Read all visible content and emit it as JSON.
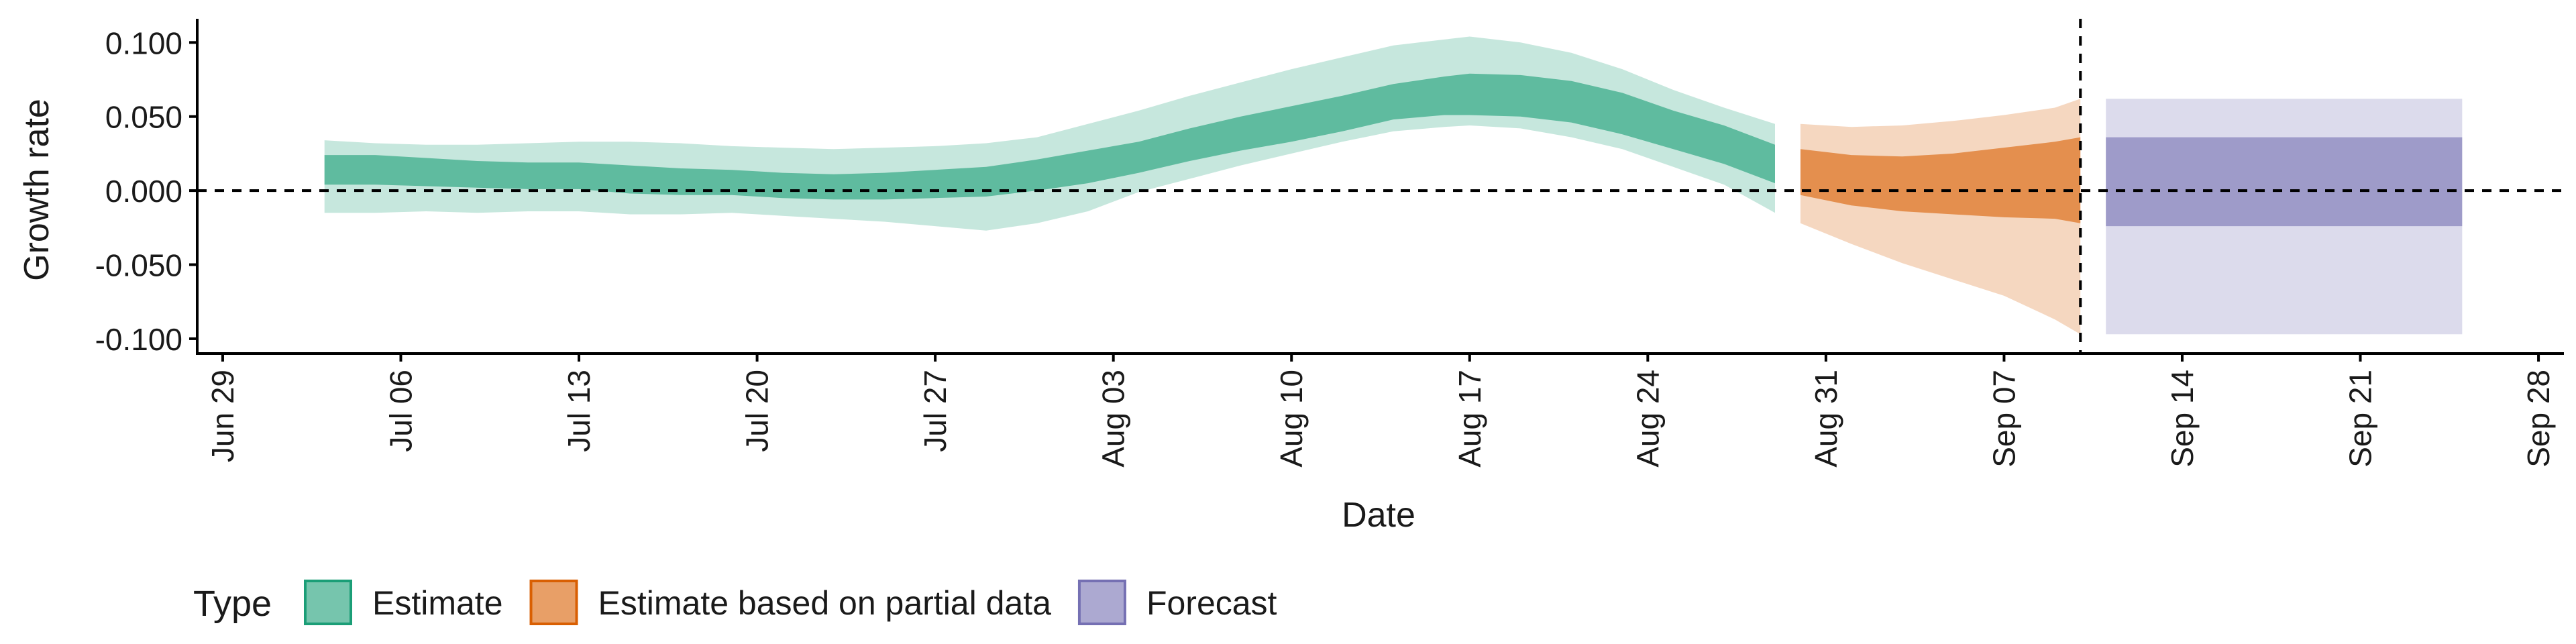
{
  "chart_data": {
    "type": "area",
    "xlabel": "Date",
    "ylabel": "Growth rate",
    "xlim": [
      "2020-06-28",
      "2020-09-29"
    ],
    "ylim": [
      -0.11,
      0.116
    ],
    "x_ticks": [
      {
        "date": "2020-06-29",
        "label": "Jun 29"
      },
      {
        "date": "2020-07-06",
        "label": "Jul 06"
      },
      {
        "date": "2020-07-13",
        "label": "Jul 13"
      },
      {
        "date": "2020-07-20",
        "label": "Jul 20"
      },
      {
        "date": "2020-07-27",
        "label": "Jul 27"
      },
      {
        "date": "2020-08-03",
        "label": "Aug 03"
      },
      {
        "date": "2020-08-10",
        "label": "Aug 10"
      },
      {
        "date": "2020-08-17",
        "label": "Aug 17"
      },
      {
        "date": "2020-08-24",
        "label": "Aug 24"
      },
      {
        "date": "2020-08-31",
        "label": "Aug 31"
      },
      {
        "date": "2020-09-07",
        "label": "Sep 07"
      },
      {
        "date": "2020-09-14",
        "label": "Sep 14"
      },
      {
        "date": "2020-09-21",
        "label": "Sep 21"
      },
      {
        "date": "2020-09-28",
        "label": "Sep 28"
      }
    ],
    "y_ticks": [
      {
        "value": 0.1,
        "label": "0.100"
      },
      {
        "value": 0.05,
        "label": "0.050"
      },
      {
        "value": 0.0,
        "label": "0.000"
      },
      {
        "value": -0.05,
        "label": "-0.050"
      },
      {
        "value": -0.1,
        "label": "-0.100"
      }
    ],
    "hline_y": 0.0,
    "vline_date": "2020-09-10",
    "grid": false,
    "legend": {
      "title": "Type",
      "position": "bottom-left"
    },
    "series": [
      {
        "name": "Estimate",
        "color": "#1b9e77",
        "dates": [
          "2020-07-03",
          "2020-07-05",
          "2020-07-07",
          "2020-07-09",
          "2020-07-11",
          "2020-07-13",
          "2020-07-15",
          "2020-07-17",
          "2020-07-19",
          "2020-07-21",
          "2020-07-23",
          "2020-07-25",
          "2020-07-27",
          "2020-07-29",
          "2020-07-31",
          "2020-08-02",
          "2020-08-04",
          "2020-08-06",
          "2020-08-08",
          "2020-08-10",
          "2020-08-12",
          "2020-08-14",
          "2020-08-16",
          "2020-08-17",
          "2020-08-19",
          "2020-08-21",
          "2020-08-23",
          "2020-08-25",
          "2020-08-27",
          "2020-08-29"
        ],
        "lower_90": [
          -0.015,
          -0.015,
          -0.014,
          -0.015,
          -0.014,
          -0.014,
          -0.016,
          -0.016,
          -0.015,
          -0.017,
          -0.019,
          -0.021,
          -0.024,
          -0.027,
          -0.022,
          -0.014,
          -0.001,
          0.008,
          0.017,
          0.025,
          0.033,
          0.04,
          0.043,
          0.044,
          0.042,
          0.036,
          0.028,
          0.016,
          0.004,
          -0.015
        ],
        "lower_50": [
          0.004,
          0.004,
          0.003,
          0.002,
          0.001,
          0.001,
          -0.002,
          -0.003,
          -0.003,
          -0.005,
          -0.006,
          -0.006,
          -0.005,
          -0.004,
          0.0,
          0.005,
          0.012,
          0.02,
          0.027,
          0.033,
          0.04,
          0.048,
          0.051,
          0.051,
          0.05,
          0.046,
          0.038,
          0.028,
          0.018,
          0.005
        ],
        "upper_50": [
          0.024,
          0.024,
          0.022,
          0.02,
          0.019,
          0.019,
          0.017,
          0.015,
          0.014,
          0.012,
          0.011,
          0.012,
          0.014,
          0.016,
          0.021,
          0.027,
          0.033,
          0.042,
          0.05,
          0.057,
          0.064,
          0.072,
          0.077,
          0.079,
          0.078,
          0.074,
          0.066,
          0.054,
          0.044,
          0.031
        ],
        "upper_90": [
          0.034,
          0.032,
          0.031,
          0.031,
          0.032,
          0.033,
          0.033,
          0.032,
          0.03,
          0.029,
          0.028,
          0.029,
          0.03,
          0.032,
          0.036,
          0.045,
          0.054,
          0.064,
          0.073,
          0.082,
          0.09,
          0.098,
          0.102,
          0.104,
          0.1,
          0.093,
          0.082,
          0.068,
          0.056,
          0.045
        ]
      },
      {
        "name": "Estimate based on partial data",
        "color": "#d95f02",
        "dates": [
          "2020-08-30",
          "2020-09-01",
          "2020-09-03",
          "2020-09-05",
          "2020-09-07",
          "2020-09-09",
          "2020-09-10"
        ],
        "lower_90": [
          -0.022,
          -0.036,
          -0.049,
          -0.06,
          -0.071,
          -0.087,
          -0.097
        ],
        "lower_50": [
          -0.003,
          -0.01,
          -0.014,
          -0.016,
          -0.018,
          -0.019,
          -0.022
        ],
        "upper_50": [
          0.028,
          0.024,
          0.023,
          0.025,
          0.029,
          0.033,
          0.036
        ],
        "upper_90": [
          0.045,
          0.043,
          0.044,
          0.047,
          0.051,
          0.056,
          0.062
        ]
      },
      {
        "name": "Forecast",
        "color": "#7570b3",
        "dates": [
          "2020-09-11",
          "2020-09-25"
        ],
        "lower_90": [
          -0.097,
          -0.097
        ],
        "lower_50": [
          -0.024,
          -0.024
        ],
        "upper_50": [
          0.036,
          0.036
        ],
        "upper_90": [
          0.062,
          0.062
        ]
      }
    ]
  }
}
